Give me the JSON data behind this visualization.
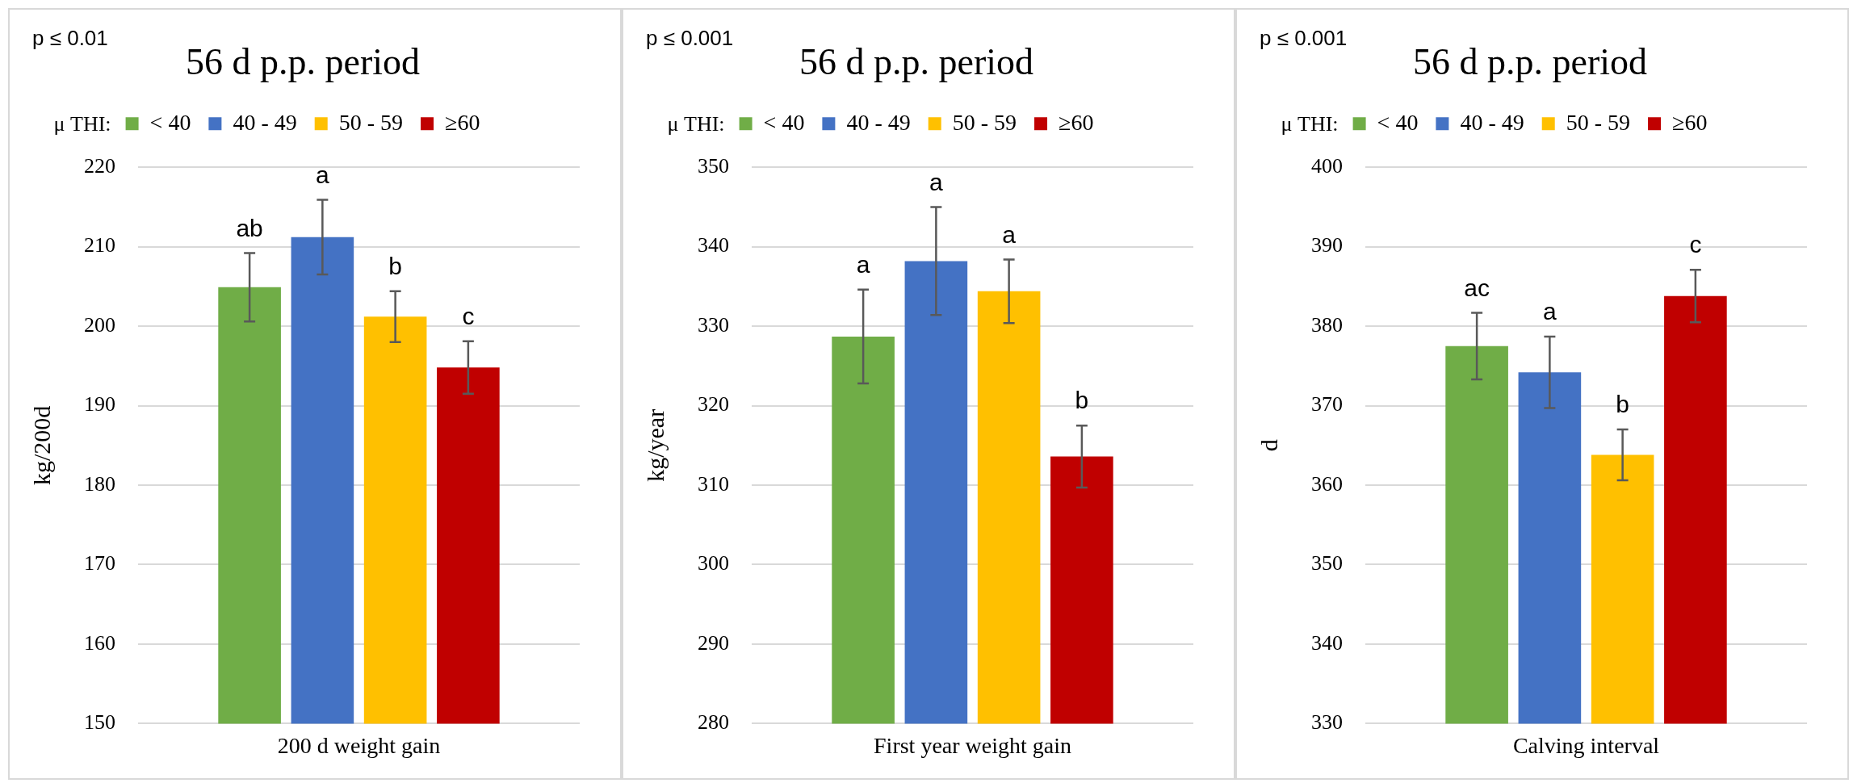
{
  "chart_data": [
    {
      "type": "bar",
      "title": "56 d p.p. period",
      "ylabel": "kg/200d",
      "legend_title": "μ THI:",
      "legend": "top",
      "grid": "y",
      "categories": [
        "200 d weight gain"
      ],
      "ylim": [
        150,
        220
      ],
      "yticks": [
        150,
        160,
        170,
        180,
        190,
        200,
        210,
        220
      ],
      "annotations": [
        "p ≤ 0.01",
        "ab",
        "a",
        "b",
        "c"
      ],
      "series": [
        {
          "name": "< 40",
          "color": "#70ad47",
          "values": [
            204.9
          ],
          "errors": [
            4.3
          ]
        },
        {
          "name": "40 - 49",
          "color": "#4472c4",
          "values": [
            211.2
          ],
          "errors": [
            4.7
          ]
        },
        {
          "name": "50 - 59",
          "color": "#ffc000",
          "values": [
            201.2
          ],
          "errors": [
            3.2
          ]
        },
        {
          "name": "≥60",
          "color": "#c00000",
          "values": [
            194.8
          ],
          "errors": [
            3.3
          ]
        }
      ]
    },
    {
      "type": "bar",
      "title": "56 d p.p. period",
      "ylabel": "kg/year",
      "legend_title": "μ THI:",
      "legend": "top",
      "grid": "y",
      "categories": [
        "First year weight gain"
      ],
      "ylim": [
        280,
        350
      ],
      "yticks": [
        280,
        290,
        300,
        310,
        320,
        330,
        340,
        350
      ],
      "annotations": [
        "p ≤ 0.001",
        "a",
        "a",
        "a",
        "b"
      ],
      "series": [
        {
          "name": "< 40",
          "color": "#70ad47",
          "values": [
            328.7
          ],
          "errors": [
            5.9
          ]
        },
        {
          "name": "40 - 49",
          "color": "#4472c4",
          "values": [
            338.2
          ],
          "errors": [
            6.8
          ]
        },
        {
          "name": "50 - 59",
          "color": "#ffc000",
          "values": [
            334.4
          ],
          "errors": [
            4.0
          ]
        },
        {
          "name": "≥60",
          "color": "#c00000",
          "values": [
            313.6
          ],
          "errors": [
            3.9
          ]
        }
      ]
    },
    {
      "type": "bar",
      "title": "56 d p.p. period",
      "ylabel": "d",
      "legend_title": "μ THI:",
      "legend": "top",
      "grid": "y",
      "categories": [
        "Calving interval"
      ],
      "ylim": [
        330,
        400
      ],
      "yticks": [
        330,
        340,
        350,
        360,
        370,
        380,
        390,
        400
      ],
      "annotations": [
        "p ≤ 0.001",
        "ac",
        "a",
        "b",
        "c"
      ],
      "series": [
        {
          "name": "< 40",
          "color": "#70ad47",
          "values": [
            377.5
          ],
          "errors": [
            4.2
          ]
        },
        {
          "name": "40 - 49",
          "color": "#4472c4",
          "values": [
            374.2
          ],
          "errors": [
            4.5
          ]
        },
        {
          "name": "50 - 59",
          "color": "#ffc000",
          "values": [
            363.8
          ],
          "errors": [
            3.2
          ]
        },
        {
          "name": "≥60",
          "color": "#c00000",
          "values": [
            383.8
          ],
          "errors": [
            3.3
          ]
        }
      ]
    }
  ]
}
